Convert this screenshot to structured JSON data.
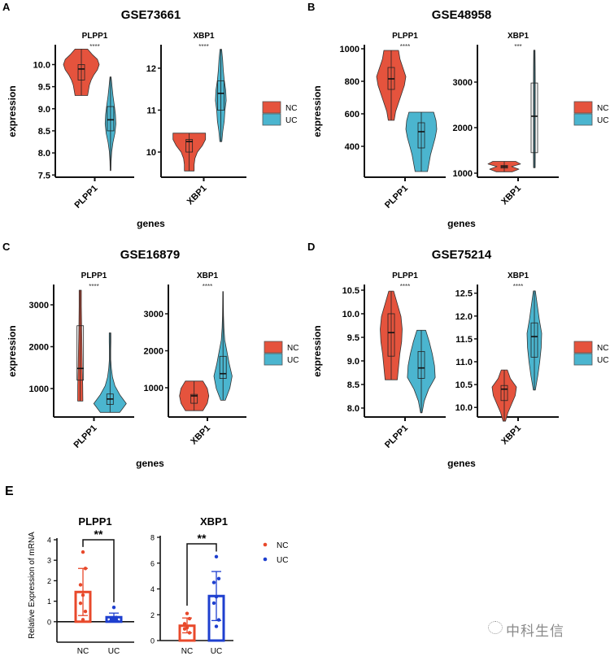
{
  "colors": {
    "NC": "#E5533D",
    "UC": "#4BB5CF",
    "E_NC": "#E8492B",
    "E_UC": "#1E3FCF",
    "axis": "#111111"
  },
  "chart_data": [
    {
      "type": "violin",
      "label": "A",
      "title": "GSE73661",
      "xlabel": "genes",
      "ylabel": "expression",
      "legend": [
        "NC",
        "UC"
      ],
      "legend_position": "right",
      "subplots": [
        {
          "gene": "PLPP1",
          "sig": "****",
          "ylim": [
            7.45,
            10.45
          ],
          "ticks": [
            7.5,
            8.0,
            8.5,
            9.0,
            9.5,
            10.0
          ],
          "tick_labels": [
            "7.5",
            "8.0",
            "8.5",
            "9.0",
            "9.5",
            "10.0"
          ],
          "NC": {
            "min": 9.3,
            "q1": 9.65,
            "median": 9.9,
            "q3": 10.0,
            "max": 10.35,
            "density": [
              0.35,
              0.4,
              0.45,
              0.55,
              0.7,
              0.9,
              1.0,
              0.9,
              0.6,
              0.35
            ]
          },
          "UC": {
            "min": 7.6,
            "q1": 8.5,
            "median": 8.75,
            "q3": 9.05,
            "max": 9.72,
            "density": [
              0.03,
              0.06,
              0.12,
              0.25,
              0.45,
              0.55,
              0.5,
              0.38,
              0.25,
              0.15,
              0.06
            ]
          }
        },
        {
          "gene": "XBP1",
          "sig": "****",
          "ylim": [
            9.4,
            12.56
          ],
          "ticks": [
            10,
            11,
            12
          ],
          "tick_labels": [
            "10",
            "11",
            "12"
          ],
          "NC": {
            "min": 9.55,
            "q1": 10.0,
            "median": 10.25,
            "q3": 10.3,
            "max": 10.45,
            "density": [
              0.3,
              0.3,
              0.35,
              0.5,
              0.8,
              1.0,
              1.0
            ]
          },
          "UC": {
            "min": 10.25,
            "q1": 11.0,
            "median": 11.4,
            "q3": 11.7,
            "max": 12.45,
            "density": [
              0.1,
              0.2,
              0.35,
              0.42,
              0.55,
              0.5,
              0.35,
              0.25,
              0.18,
              0.08
            ]
          }
        }
      ]
    },
    {
      "type": "violin",
      "label": "B",
      "title": "GSE48958",
      "xlabel": "genes",
      "ylabel": "expression",
      "legend": [
        "NC",
        "UC"
      ],
      "legend_position": "right",
      "subplots": [
        {
          "gene": "PLPP1",
          "sig": "****",
          "ylim": [
            210,
            1025
          ],
          "ticks": [
            400,
            600,
            800,
            1000
          ],
          "tick_labels": [
            "400",
            "600",
            "800",
            "1000"
          ],
          "NC": {
            "min": 560,
            "q1": 750,
            "median": 815,
            "q3": 885,
            "max": 990,
            "density": [
              0.2,
              0.3,
              0.5,
              0.7,
              0.9,
              1.0,
              0.8,
              0.6,
              0.5
            ]
          },
          "UC": {
            "min": 245,
            "q1": 390,
            "median": 490,
            "q3": 545,
            "max": 610,
            "density": [
              0.4,
              0.5,
              0.6,
              0.75,
              0.9,
              1.0,
              0.95,
              0.8
            ]
          }
        },
        {
          "gene": "XBP1",
          "sig": "***",
          "ylim": [
            911,
            3821
          ],
          "ticks": [
            1000,
            2000,
            3000
          ],
          "tick_labels": [
            "1000",
            "2000",
            "3000"
          ],
          "NC": {
            "min": 1030,
            "q1": 1110,
            "median": 1140,
            "q3": 1170,
            "max": 1260,
            "density": [
              0.5,
              0.9,
              0.45,
              1.0,
              0.7
            ]
          },
          "UC": {
            "min": 1120,
            "q1": 1450,
            "median": 2250,
            "q3": 2980,
            "max": 3700,
            "density": [
              0.12,
              0.14,
              0.14,
              0.14,
              0.14,
              0.14,
              0.12,
              0.1
            ]
          }
        }
      ]
    },
    {
      "type": "violin",
      "label": "C",
      "title": "GSE16879",
      "xlabel": "genes",
      "ylabel": "expression",
      "legend": [
        "NC",
        "UC"
      ],
      "legend_position": "right",
      "subplots": [
        {
          "gene": "PLPP1",
          "sig": "****",
          "ylim": [
            320,
            3485
          ],
          "ticks": [
            1000,
            2000,
            3000
          ],
          "tick_labels": [
            "1000",
            "2000",
            "3000"
          ],
          "NC": {
            "min": 700,
            "q1": 1200,
            "median": 1480,
            "q3": 2500,
            "max": 3350,
            "density": [
              0.4,
              0.38,
              0.32,
              0.28,
              0.24,
              0.2,
              0.17,
              0.17
            ]
          },
          "UC": {
            "min": 430,
            "q1": 620,
            "median": 750,
            "q3": 870,
            "max": 2330,
            "density": [
              0.6,
              1.0,
              0.6,
              0.3,
              0.15,
              0.08,
              0.04,
              0.04,
              0.05,
              0.05
            ]
          }
        },
        {
          "gene": "XBP1",
          "sig": "****",
          "ylim": [
            208,
            3792
          ],
          "ticks": [
            1000,
            2000,
            3000
          ],
          "tick_labels": [
            "1000",
            "2000",
            "3000"
          ],
          "NC": {
            "min": 380,
            "q1": 580,
            "median": 780,
            "q3": 820,
            "max": 1180,
            "density": [
              0.6,
              0.9,
              1.0,
              0.9,
              0.6
            ]
          },
          "UC": {
            "min": 660,
            "q1": 1250,
            "median": 1380,
            "q3": 1850,
            "max": 3600,
            "density": [
              0.2,
              0.6,
              0.8,
              0.55,
              0.35,
              0.15,
              0.08,
              0.04,
              0.03,
              0.02
            ]
          }
        }
      ]
    },
    {
      "type": "violin",
      "label": "D",
      "title": "GSE75214",
      "xlabel": "genes",
      "ylabel": "expression",
      "legend": [
        "NC",
        "UC"
      ],
      "legend_position": "right",
      "subplots": [
        {
          "gene": "PLPP1",
          "sig": "****",
          "ylim": [
            7.81,
            10.62
          ],
          "ticks": [
            8.0,
            8.5,
            9.0,
            9.5,
            10.0,
            10.5
          ],
          "tick_labels": [
            "8.0",
            "8.5",
            "9.0",
            "9.5",
            "10.0",
            "10.5"
          ],
          "NC": {
            "min": 8.6,
            "q1": 9.1,
            "median": 9.6,
            "q3": 10.0,
            "max": 10.48,
            "density": [
              0.5,
              0.6,
              0.7,
              0.85,
              0.9,
              0.8,
              0.5,
              0.2
            ]
          },
          "UC": {
            "min": 7.9,
            "q1": 8.63,
            "median": 8.85,
            "q3": 9.2,
            "max": 9.65,
            "density": [
              0.05,
              0.2,
              0.5,
              0.95,
              0.9,
              0.75,
              0.55,
              0.3
            ]
          }
        },
        {
          "gene": "XBP1",
          "sig": "****",
          "ylim": [
            9.79,
            12.69
          ],
          "ticks": [
            10.0,
            10.5,
            11.0,
            11.5,
            12.0,
            12.5
          ],
          "tick_labels": [
            "10.0",
            "10.5",
            "11.0",
            "11.5",
            "12.0",
            "12.5"
          ],
          "NC": {
            "min": 9.7,
            "q1": 10.15,
            "median": 10.4,
            "q3": 10.48,
            "max": 10.82,
            "density": [
              0.1,
              0.3,
              0.6,
              0.9,
              1.0,
              0.5,
              0.25
            ]
          },
          "UC": {
            "min": 10.38,
            "q1": 11.1,
            "median": 11.55,
            "q3": 11.85,
            "max": 12.55,
            "density": [
              0.1,
              0.35,
              0.55,
              0.7,
              0.75,
              0.5,
              0.3,
              0.1
            ]
          }
        }
      ]
    },
    {
      "type": "bar",
      "label": "E",
      "ylabel": "Relative Expression  of mRNA",
      "legend": [
        "NC",
        "UC"
      ],
      "legend_position": "right",
      "subplots": [
        {
          "title": "PLPP1",
          "sig": "**",
          "categories": [
            "NC",
            "UC"
          ],
          "ylim": [
            -1,
            4
          ],
          "ticks": [
            0,
            1,
            2,
            3,
            4
          ],
          "tick_labels": [
            "0",
            "1",
            "2",
            "3",
            "4"
          ],
          "means": [
            1.45,
            0.22
          ],
          "err_low": [
            0.3,
            0.05
          ],
          "err_high": [
            2.6,
            0.42
          ],
          "points": [
            [
              3.4,
              2.6,
              1.8,
              1.3,
              0.9,
              0.5,
              0.1
            ],
            [
              0.7,
              0.2,
              0.15,
              0.1,
              0.1,
              0.1
            ]
          ],
          "bracket": [
            3.65,
            4.0,
            0.95
          ]
        },
        {
          "title": "XBP1",
          "sig": "**",
          "categories": [
            "NC",
            "UC"
          ],
          "ylim": [
            0,
            8
          ],
          "ticks": [
            0,
            2,
            4,
            6,
            8
          ],
          "tick_labels": [
            "0",
            "2",
            "4",
            "6",
            "8"
          ],
          "means": [
            1.15,
            3.45
          ],
          "err_low": [
            0.6,
            1.55
          ],
          "err_high": [
            1.75,
            5.35
          ],
          "points": [
            [
              2.1,
              1.7,
              1.3,
              1.0,
              0.9,
              0.6
            ],
            [
              6.5,
              4.8,
              4.5,
              3.4,
              2.9,
              1.6,
              1.1
            ]
          ],
          "bracket": [
            2.7,
            7.5,
            6.9
          ]
        }
      ]
    }
  ],
  "watermark": "中科生信"
}
